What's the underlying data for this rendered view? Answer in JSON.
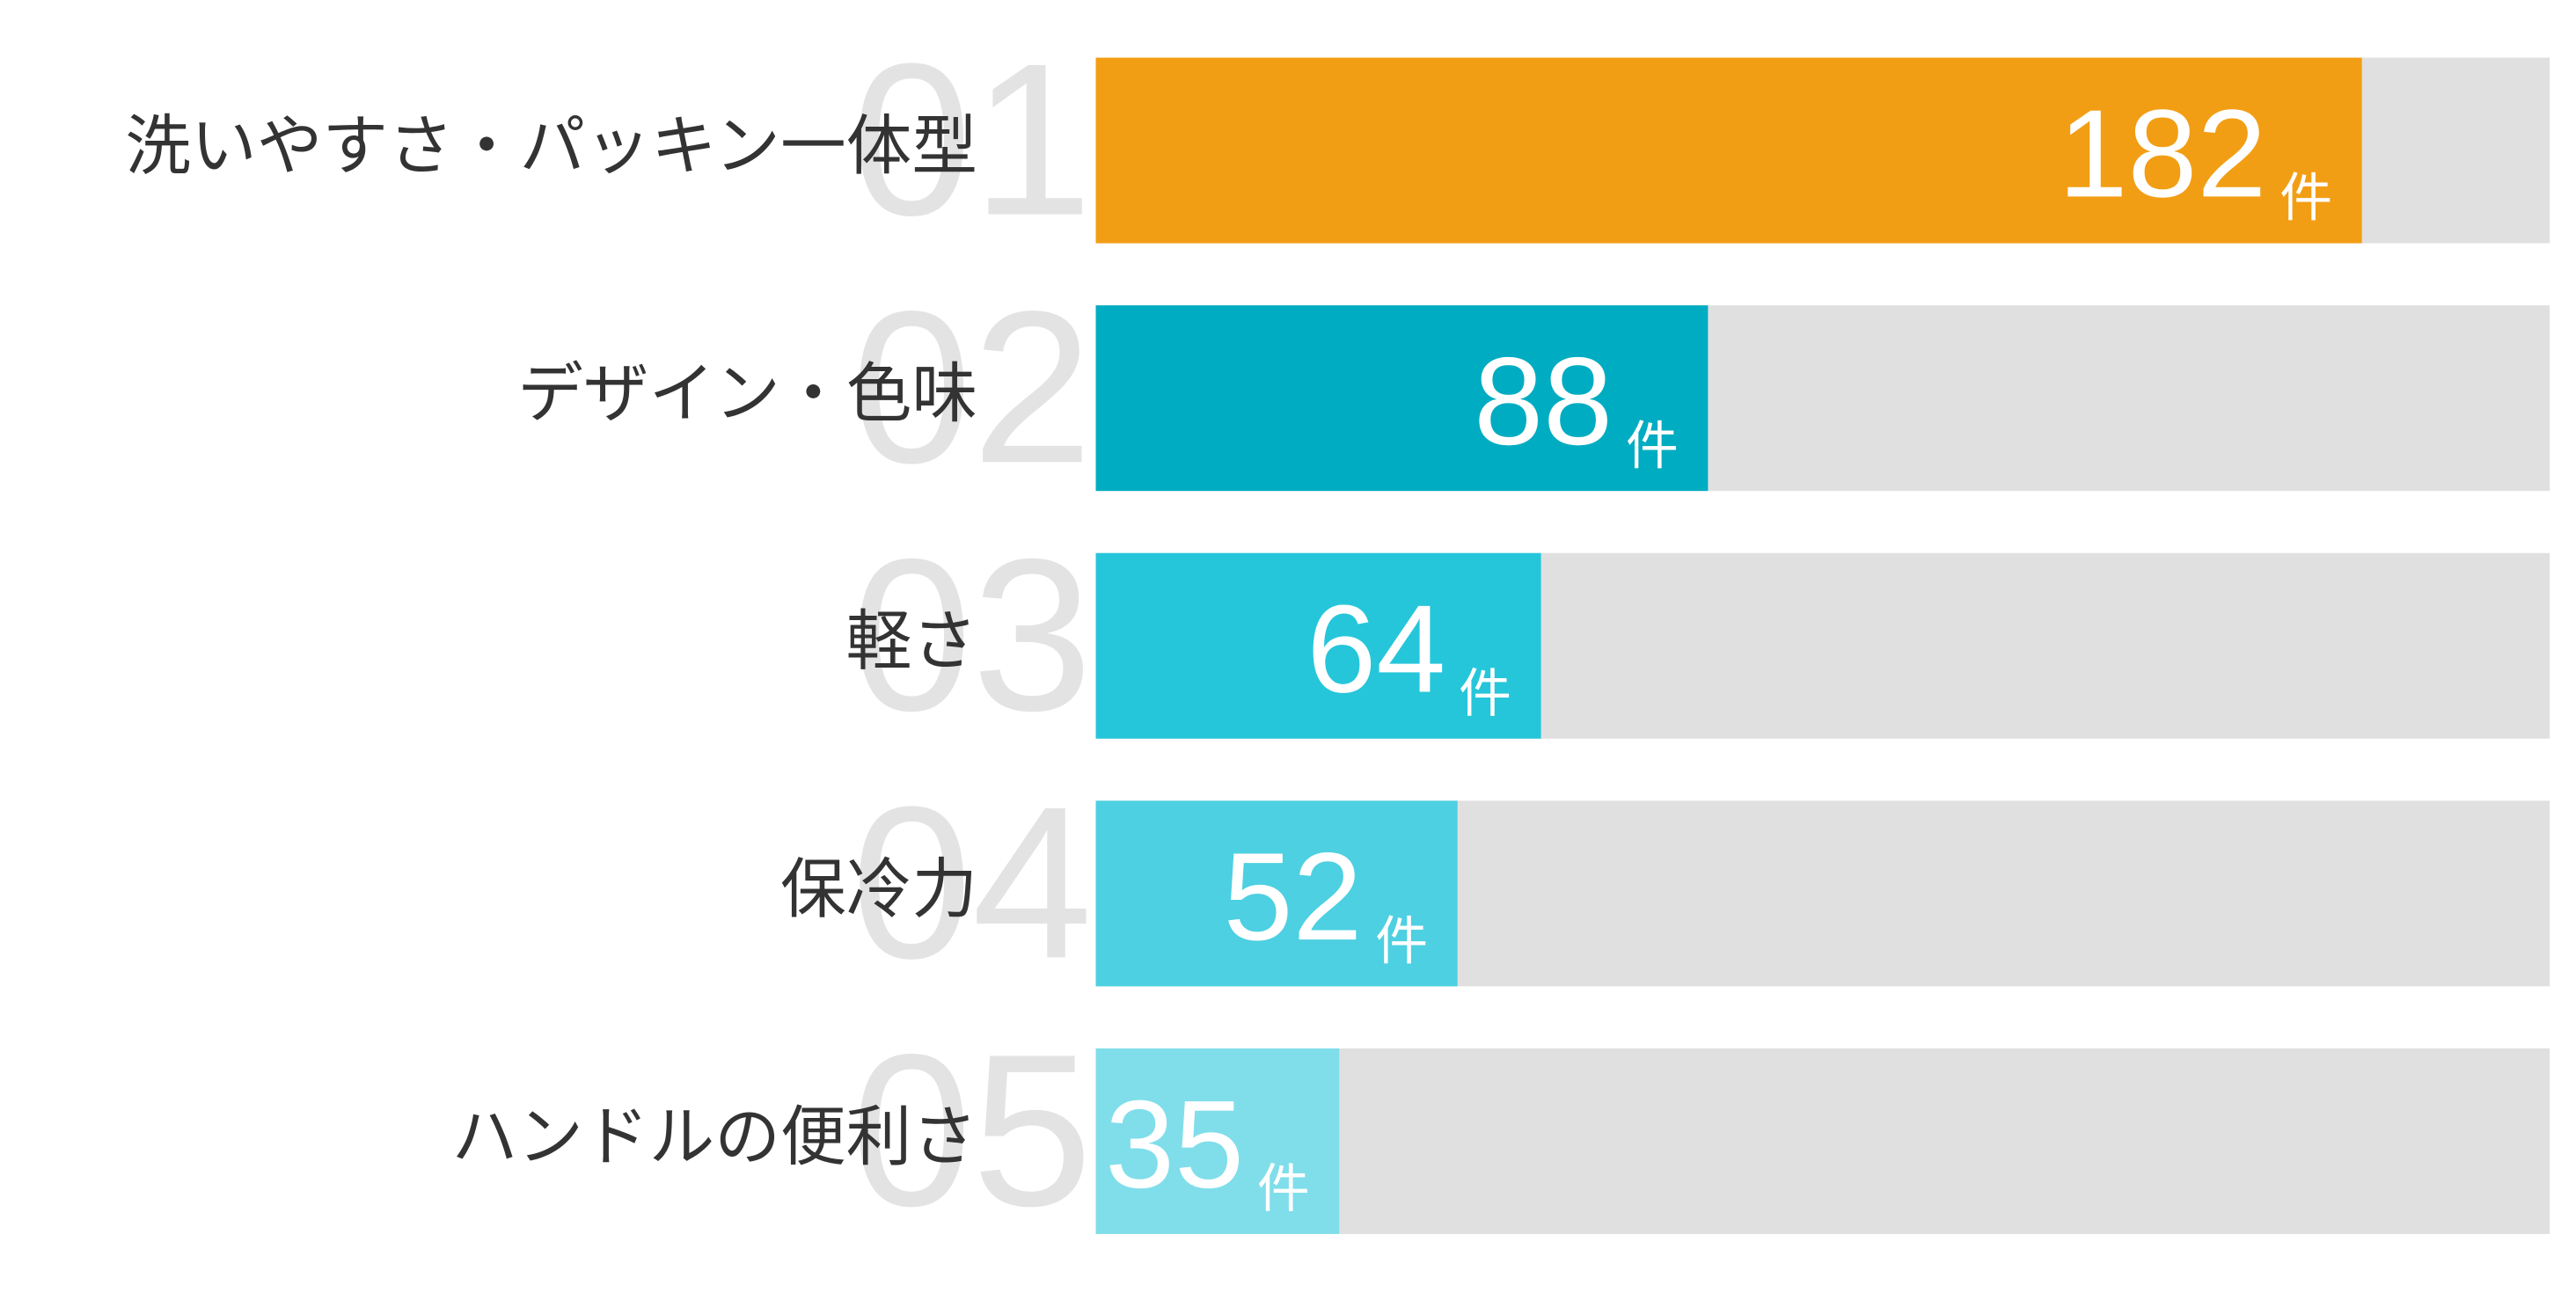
{
  "chart_data": {
    "type": "bar",
    "orientation": "horizontal",
    "categories": [
      "洗いやすさ・パッキン一体型",
      "デザイン・色味",
      "軽さ",
      "保冷力",
      "ハンドルの便利さ"
    ],
    "ranks": [
      "01",
      "02",
      "03",
      "04",
      "05"
    ],
    "values": [
      182,
      88,
      64,
      52,
      35
    ],
    "unit": "件",
    "colors": [
      "#f29e14",
      "#00acc1",
      "#26c6da",
      "#4dd0e1",
      "#80deea"
    ],
    "track_color": "#e0e0e0",
    "xlim": [
      0,
      209
    ]
  }
}
